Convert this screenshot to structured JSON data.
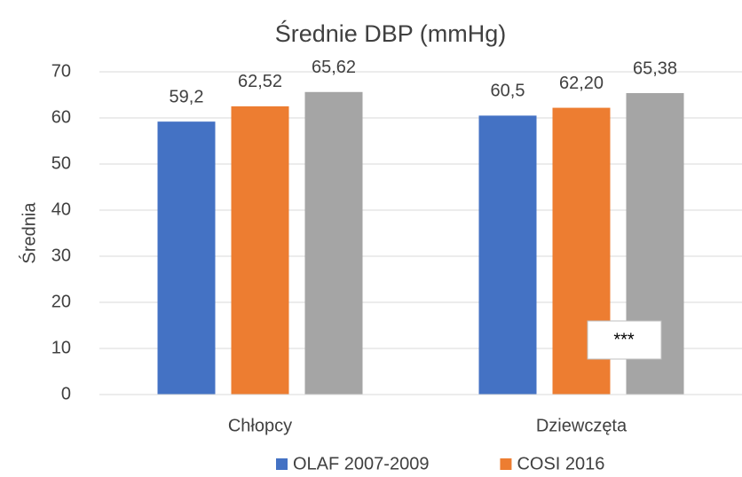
{
  "chart_data": {
    "type": "bar",
    "title": "Średnie DBP (mmHg)",
    "ylabel": "Średnia",
    "categories": [
      "Chłopcy",
      "Dziewczęta"
    ],
    "series": [
      {
        "name": "OLAF 2007-2009",
        "color": "#4472c4",
        "values": [
          59.2,
          60.5
        ],
        "value_labels": [
          "59,2",
          "60,5"
        ]
      },
      {
        "name": "COSI 2016",
        "color": "#ed7d31",
        "values": [
          62.52,
          62.2
        ],
        "value_labels": [
          "62,52",
          "62,20"
        ]
      },
      {
        "color": "#a5a5a5",
        "values": [
          65.62,
          65.38
        ],
        "value_labels": [
          "65,62",
          "65,38"
        ]
      }
    ],
    "annotation": "***",
    "ylim": [
      0,
      70
    ],
    "yticks": [
      0,
      10,
      20,
      30,
      40,
      50,
      60,
      70
    ],
    "grid": true
  }
}
